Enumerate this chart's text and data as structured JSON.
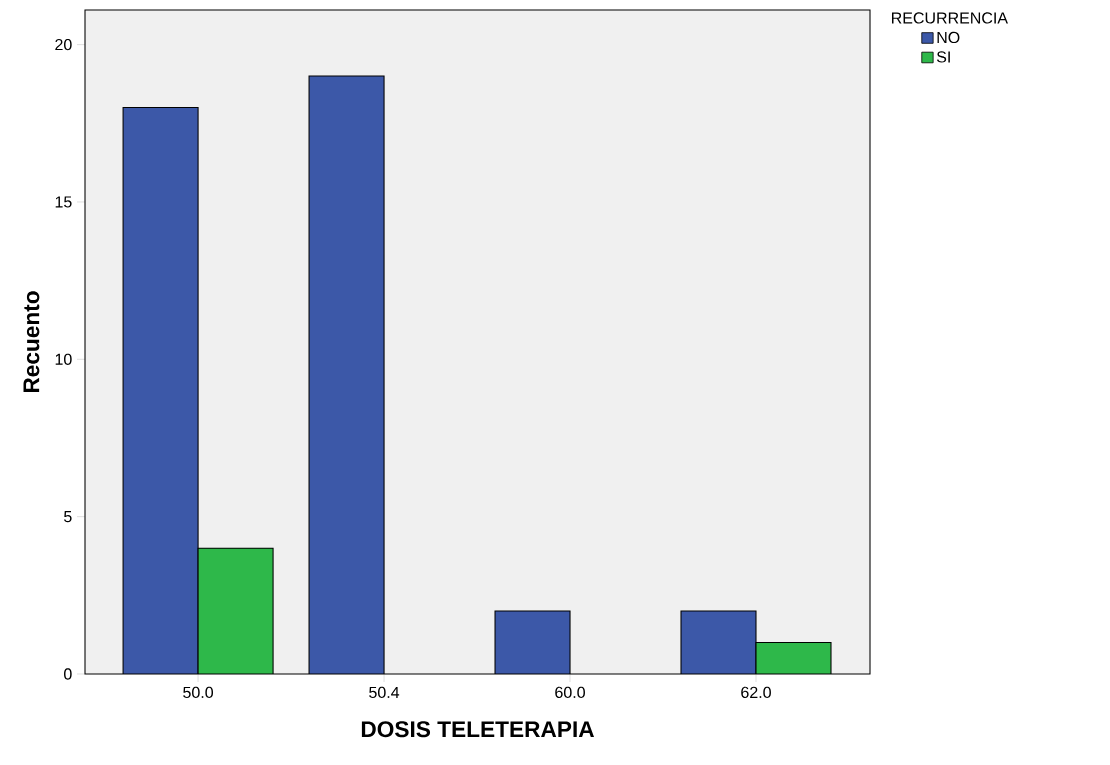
{
  "chart_data": {
    "type": "bar",
    "xlabel": "DOSIS TELETERAPIA",
    "ylabel": "Recuento",
    "legend_title": "RECURRENCIA",
    "categories": [
      "50.0",
      "50.4",
      "60.0",
      "62.0"
    ],
    "series": [
      {
        "name": "NO",
        "color": "#3c58a8",
        "values": [
          18,
          19,
          2,
          2
        ]
      },
      {
        "name": "SI",
        "color": "#2eb84a",
        "values": [
          4,
          null,
          null,
          1
        ]
      }
    ],
    "ylim": [
      0,
      21.1
    ],
    "yticks": [
      0,
      5,
      10,
      15,
      20
    ],
    "legend": "top right"
  }
}
